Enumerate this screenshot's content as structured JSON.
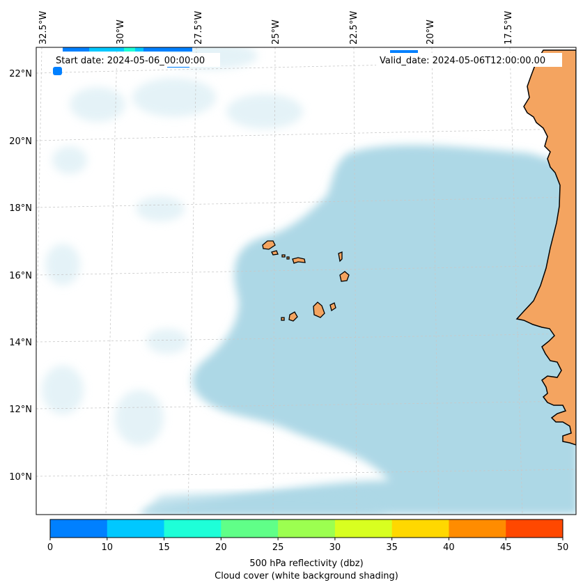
{
  "map": {
    "start_date": "Start date: 2024-05-06_00:00:00",
    "valid_date": "Valid_date: 2024-05-06T12:00:00.00",
    "lon_labels": [
      "32.5°W",
      "30°W",
      "27.5°W",
      "25°W",
      "22.5°W",
      "20°W",
      "17.5°W"
    ],
    "lat_labels": [
      "22°N",
      "20°N",
      "18°N",
      "16°N",
      "14°N",
      "12°N",
      "10°N"
    ],
    "colors": {
      "cloud": "#add8e6",
      "land": "#f4a460",
      "coast": "#000000",
      "grid": "#c8c8c8"
    },
    "icons": [
      "reflectivity-patch-icon"
    ]
  },
  "colorbar": {
    "ticks": [
      "0",
      "10",
      "15",
      "20",
      "25",
      "30",
      "35",
      "40",
      "45",
      "50"
    ],
    "colors": [
      "#0080ff",
      "#00c8ff",
      "#1effd8",
      "#60ff88",
      "#9cff50",
      "#d8ff20",
      "#ffd800",
      "#ff8c00",
      "#ff4800"
    ],
    "label_line1": "500 hPa reflectivity (dbz)",
    "label_line2": "Cloud cover (white background shading)"
  }
}
